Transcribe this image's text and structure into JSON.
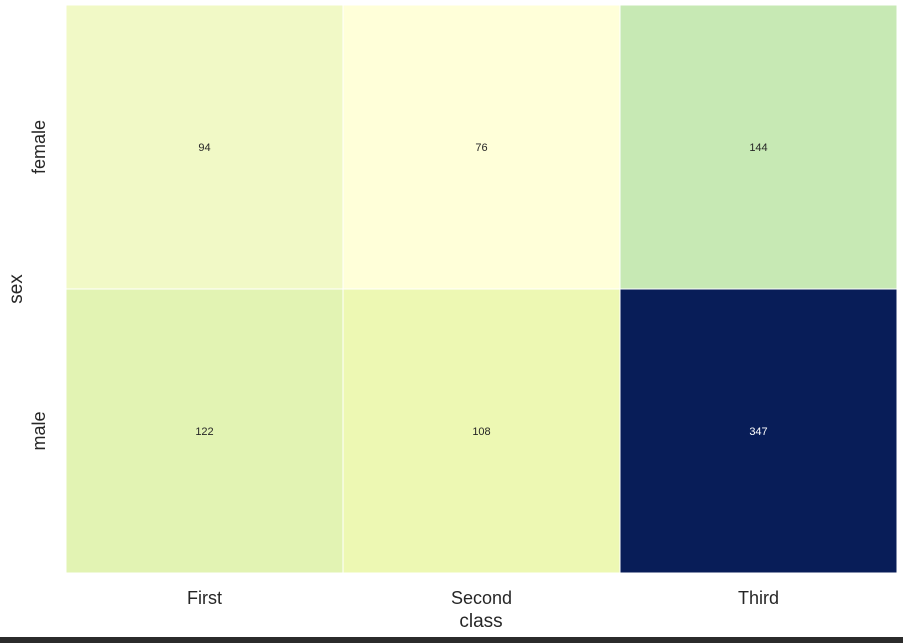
{
  "chart_data": {
    "type": "heatmap",
    "xlabel": "class",
    "ylabel": "sex",
    "x_categories": [
      "First",
      "Second",
      "Third"
    ],
    "y_categories": [
      "female",
      "male"
    ],
    "values": [
      [
        94,
        76,
        144
      ],
      [
        122,
        108,
        347
      ]
    ],
    "colormap": "YlGnBu",
    "colorbar": false,
    "annotations": true,
    "cell_border_color": "#ffffff",
    "cell_colors": [
      [
        "#f1f9c6",
        "#ffffd9",
        "#c7e9b4"
      ],
      [
        "#e2f3b3",
        "#edf8b3",
        "#081d58"
      ]
    ],
    "annotation_colors": [
      [
        "#262626",
        "#262626",
        "#262626"
      ],
      [
        "#262626",
        "#262626",
        "#ffffff"
      ]
    ]
  }
}
